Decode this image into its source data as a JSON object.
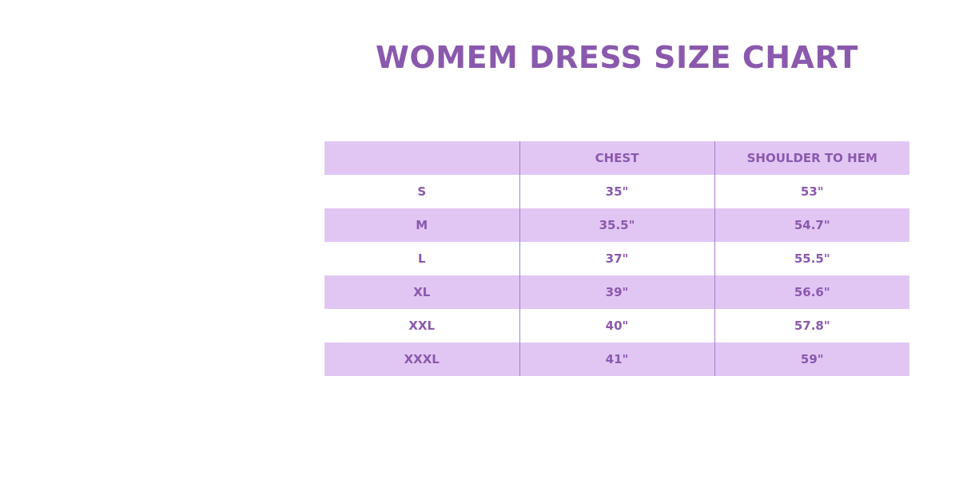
{
  "title": "WOMEM DRESS SIZE CHART",
  "colors": {
    "accent": "#8a59ad",
    "band": "#e1c6f4"
  },
  "table": {
    "headers": [
      "",
      "CHEST",
      "SHOULDER TO HEM"
    ],
    "rows": [
      [
        "S",
        "35\"",
        "53\""
      ],
      [
        "M",
        "35.5\"",
        "54.7\""
      ],
      [
        "L",
        "37\"",
        "55.5\""
      ],
      [
        "XL",
        "39\"",
        "56.6\""
      ],
      [
        "XXL",
        "40\"",
        "57.8\""
      ],
      [
        "XXXL",
        "41\"",
        "59\""
      ]
    ]
  }
}
